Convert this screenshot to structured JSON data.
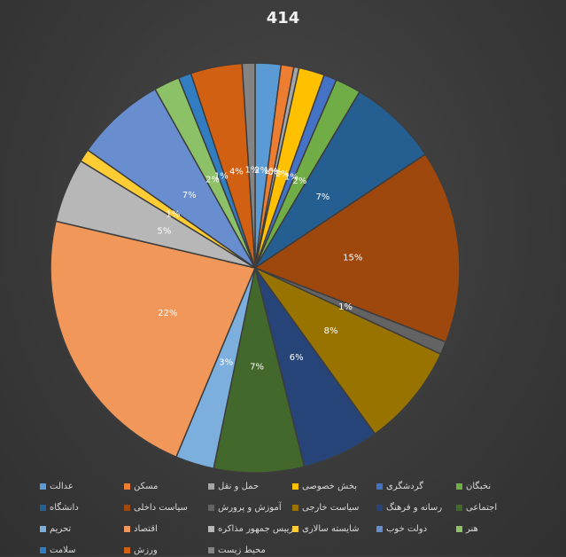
{
  "chart_data": {
    "type": "pie",
    "title": "414",
    "labels_direction": "clockwise-from-top",
    "slices": [
      {
        "name": "عدالت",
        "value": 2,
        "label": "2%",
        "color": "#5b9bd5"
      },
      {
        "name": "مسکن",
        "value": 1,
        "label": "1%",
        "color": "#ed7d31"
      },
      {
        "name": "حمل و نقل",
        "value": 0.4,
        "label": "0%",
        "color": "#a5a5a5"
      },
      {
        "name": "بخش خصوصی",
        "value": 2,
        "label": "2%",
        "color": "#ffc000"
      },
      {
        "name": "گردشگری",
        "value": 1,
        "label": "1%",
        "color": "#4472c4"
      },
      {
        "name": "نخبگان",
        "value": 2,
        "label": "2%",
        "color": "#70ad47"
      },
      {
        "name": "دانشگاه",
        "value": 7,
        "label": "7%",
        "color": "#255e91"
      },
      {
        "name": "سیاست داخلی",
        "value": 15,
        "label": "15%",
        "color": "#9e480e"
      },
      {
        "name": "آموزش و پرورش",
        "value": 1,
        "label": "1%",
        "color": "#636363"
      },
      {
        "name": "سیاست خارجی",
        "value": 8,
        "label": "8%",
        "color": "#997300"
      },
      {
        "name": "رسانه و فرهنگ",
        "value": 6,
        "label": "6%",
        "color": "#264478"
      },
      {
        "name": "اجتماعی",
        "value": 7,
        "label": "7%",
        "color": "#43682b"
      },
      {
        "name": "تحریم",
        "value": 3,
        "label": "3%",
        "color": "#7cafdd"
      },
      {
        "name": "اقتصاد",
        "value": 22,
        "label": "22%",
        "color": "#f1975a"
      },
      {
        "name": "رییس جمهور مذاکره",
        "value": 5,
        "label": "5%",
        "color": "#b7b7b7"
      },
      {
        "name": "شایسته سالاری",
        "value": 1,
        "label": "1%",
        "color": "#ffcd33"
      },
      {
        "name": "دولت خوب",
        "value": 7,
        "label": "7%",
        "color": "#698ed0"
      },
      {
        "name": "هنر",
        "value": 2,
        "label": "2%",
        "color": "#8cc168"
      },
      {
        "name": "سلامت",
        "value": 1,
        "label": "1%",
        "color": "#327dc2"
      },
      {
        "name": "ورزش",
        "value": 4,
        "label": "4%",
        "color": "#d26012"
      },
      {
        "name": "محیط زیست",
        "value": 1,
        "label": "1%",
        "color": "#848484"
      }
    ],
    "legend_position": "bottom"
  }
}
